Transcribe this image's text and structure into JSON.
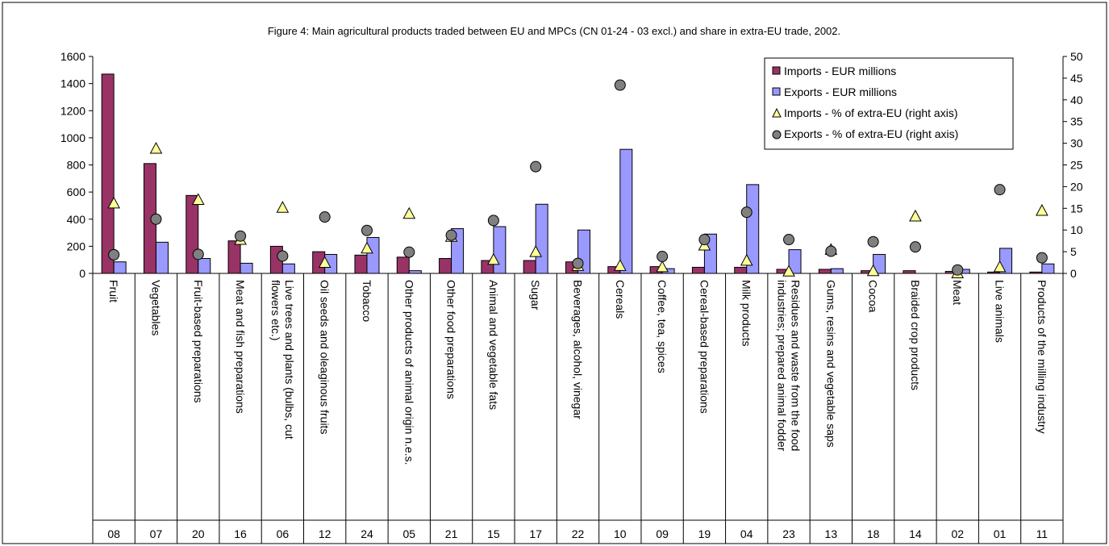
{
  "chart_data": {
    "type": "bar",
    "title": "Figure 4: Main agricultural products traded between EU and MPCs (CN 01-24 - 03 excl.) and share in extra-EU trade, 2002.",
    "categories": [
      "Fruit",
      "Vegetables",
      "Fruit-based preparations",
      "Meat and fish preparations",
      "Live trees and plants (bulbs, cut flowers etc.)",
      "Oil seeds and oleaginous fruits",
      "Tobacco",
      "Other products of animal origin n.e.s.",
      "Other food preparations",
      "Animal and vegetable fats",
      "Sugar",
      "Beverages, alcohol, vinegar",
      "Cereals",
      "Coffee, tea, spices",
      "Cereal-based preparations",
      "Milk products",
      "Residues and waste from the food industries; prepared animal fodder",
      "Gums, resins and vegetable saps",
      "Cocoa",
      "Braided crop products",
      "Meat",
      "Live animals",
      "Products of the milling industry"
    ],
    "category_lines": [
      [
        "Fruit"
      ],
      [
        "Vegetables"
      ],
      [
        "Fruit-based preparations"
      ],
      [
        "Meat and fish preparations"
      ],
      [
        "Live trees and plants (bulbs, cut",
        "flowers etc.)"
      ],
      [
        "Oil seeds and oleaginous fruits"
      ],
      [
        "Tobacco"
      ],
      [
        "Other products of animal origin n.e.s."
      ],
      [
        "Other food preparations"
      ],
      [
        "Animal and vegetable fats"
      ],
      [
        "Sugar"
      ],
      [
        "Beverages, alcohol, vinegar"
      ],
      [
        "Cereals"
      ],
      [
        "Coffee, tea, spices"
      ],
      [
        "Cereal-based preparations"
      ],
      [
        "Milk products"
      ],
      [
        "Residues and waste from the food",
        "industries; prepared animal fodder"
      ],
      [
        "Gums, resins and vegetable saps"
      ],
      [
        "Cocoa"
      ],
      [
        "Braided crop products"
      ],
      [
        "Meat"
      ],
      [
        "Live animals"
      ],
      [
        "Products of the milling industry"
      ]
    ],
    "codes": [
      "08",
      "07",
      "20",
      "16",
      "06",
      "12",
      "24",
      "05",
      "21",
      "15",
      "17",
      "22",
      "10",
      "09",
      "19",
      "04",
      "23",
      "13",
      "18",
      "14",
      "02",
      "01",
      "11"
    ],
    "series": [
      {
        "name": "Imports - EUR millions",
        "kind": "bar",
        "axis": "left",
        "color": "#993366",
        "values": [
          1470,
          810,
          575,
          240,
          200,
          160,
          135,
          120,
          110,
          95,
          95,
          85,
          50,
          50,
          45,
          45,
          30,
          30,
          20,
          20,
          15,
          10,
          10
        ]
      },
      {
        "name": "Exports - EUR millions",
        "kind": "bar",
        "axis": "left",
        "color": "#9999FF",
        "values": [
          85,
          230,
          110,
          75,
          70,
          140,
          265,
          20,
          330,
          345,
          510,
          320,
          915,
          35,
          290,
          655,
          175,
          35,
          140,
          0,
          30,
          185,
          70
        ]
      },
      {
        "name": "Imports - % of extra-EU (right axis)",
        "kind": "marker",
        "marker": "triangle",
        "axis": "right",
        "color": "#FFFF99",
        "values": [
          16.2,
          28.8,
          17.0,
          7.8,
          15.2,
          2.5,
          5.8,
          13.8,
          8.5,
          3.2,
          5.0,
          1.8,
          1.8,
          1.5,
          6.5,
          3.0,
          0.5,
          5.5,
          0.6,
          13.2,
          0.1,
          1.5,
          14.5
        ]
      },
      {
        "name": "Exports - % of extra-EU (right axis)",
        "kind": "marker",
        "marker": "circle",
        "axis": "right",
        "color": "#808080",
        "values": [
          4.3,
          12.5,
          4.4,
          8.6,
          4.0,
          13.0,
          9.9,
          4.9,
          8.8,
          12.2,
          24.6,
          2.3,
          43.4,
          3.9,
          7.8,
          14.1,
          7.8,
          5.1,
          7.3,
          6.1,
          0.8,
          19.3,
          3.6
        ]
      }
    ],
    "y_left": {
      "min": 0,
      "max": 1600,
      "step": 200,
      "ticks": [
        "0",
        "200",
        "400",
        "600",
        "800",
        "1000",
        "1200",
        "1400",
        "1600"
      ]
    },
    "y_right": {
      "min": 0,
      "max": 50,
      "step": 5,
      "ticks": [
        "0",
        "5",
        "10",
        "15",
        "20",
        "25",
        "30",
        "35",
        "40",
        "45",
        "50"
      ]
    },
    "legend_position": "top-right",
    "grid": false
  }
}
